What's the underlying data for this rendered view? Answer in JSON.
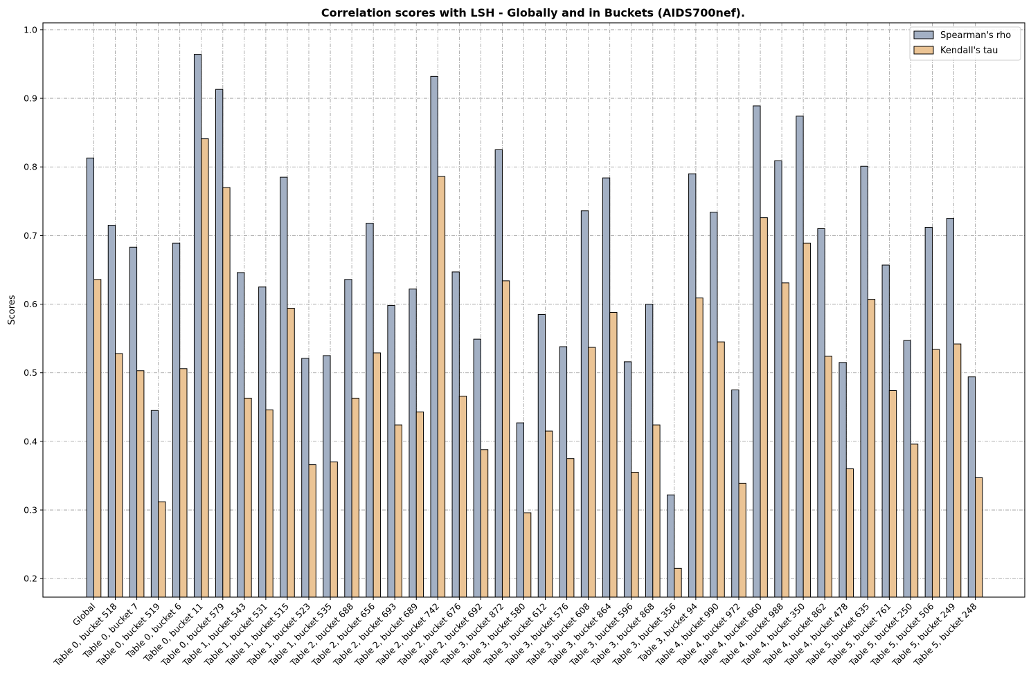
{
  "chart_data": {
    "type": "bar",
    "title": "Correlation scores with LSH - Globally and in Buckets (AIDS700nef).",
    "xlabel": "",
    "ylabel": "Scores",
    "ylim": [
      0.173,
      1.01
    ],
    "yticks": [
      0.2,
      0.3,
      0.4,
      0.5,
      0.6,
      0.7,
      0.8,
      0.9,
      1.0
    ],
    "ytick_labels": [
      "0.2",
      "0.3",
      "0.4",
      "0.5",
      "0.6",
      "0.7",
      "0.8",
      "0.9",
      "1.0"
    ],
    "grid": true,
    "legend_position": "top-right",
    "categories": [
      "Global",
      "Table 0, bucket 518",
      "Table 0, bucket 7",
      "Table 0, bucket 519",
      "Table 0, bucket 6",
      "Table 0, bucket 11",
      "Table 0, bucket 579",
      "Table 1, bucket 543",
      "Table 1, bucket 531",
      "Table 1, bucket 515",
      "Table 1, bucket 523",
      "Table 1, bucket 535",
      "Table 2, bucket 688",
      "Table 2, bucket 656",
      "Table 2, bucket 693",
      "Table 2, bucket 689",
      "Table 2, bucket 742",
      "Table 2, bucket 676",
      "Table 2, bucket 692",
      "Table 3, bucket 872",
      "Table 3, bucket 580",
      "Table 3, bucket 612",
      "Table 3, bucket 576",
      "Table 3, bucket 608",
      "Table 3, bucket 864",
      "Table 3, bucket 596",
      "Table 3, bucket 868",
      "Table 3, bucket 356",
      "Table 3, bucket 94",
      "Table 4, bucket 990",
      "Table 4, bucket 972",
      "Table 4, bucket 860",
      "Table 4, bucket 988",
      "Table 4, bucket 350",
      "Table 4, bucket 862",
      "Table 4, bucket 478",
      "Table 5, bucket 635",
      "Table 5, bucket 761",
      "Table 5, bucket 250",
      "Table 5, bucket 506",
      "Table 5, bucket 249",
      "Table 5, bucket 248"
    ],
    "series": [
      {
        "name": "Spearman's rho",
        "color": "#a3b0c4",
        "values": [
          0.813,
          0.715,
          0.683,
          0.445,
          0.689,
          0.964,
          0.913,
          0.646,
          0.625,
          0.785,
          0.521,
          0.525,
          0.636,
          0.718,
          0.598,
          0.622,
          0.932,
          0.647,
          0.549,
          0.825,
          0.427,
          0.585,
          0.538,
          0.736,
          0.784,
          0.516,
          0.6,
          0.322,
          0.79,
          0.734,
          0.475,
          0.889,
          0.809,
          0.874,
          0.71,
          0.515,
          0.801,
          0.657,
          0.547,
          0.712,
          0.725,
          0.494
        ]
      },
      {
        "name": "Kendall's tau",
        "color": "#ebc495",
        "values": [
          0.636,
          0.528,
          0.503,
          0.312,
          0.506,
          0.841,
          0.77,
          0.463,
          0.446,
          0.594,
          0.366,
          0.37,
          0.463,
          0.529,
          0.424,
          0.443,
          0.786,
          0.466,
          0.388,
          0.634,
          0.296,
          0.415,
          0.375,
          0.537,
          0.588,
          0.355,
          0.424,
          0.215,
          0.609,
          0.545,
          0.339,
          0.726,
          0.631,
          0.689,
          0.524,
          0.36,
          0.607,
          0.474,
          0.396,
          0.534,
          0.542,
          0.347
        ]
      }
    ]
  }
}
